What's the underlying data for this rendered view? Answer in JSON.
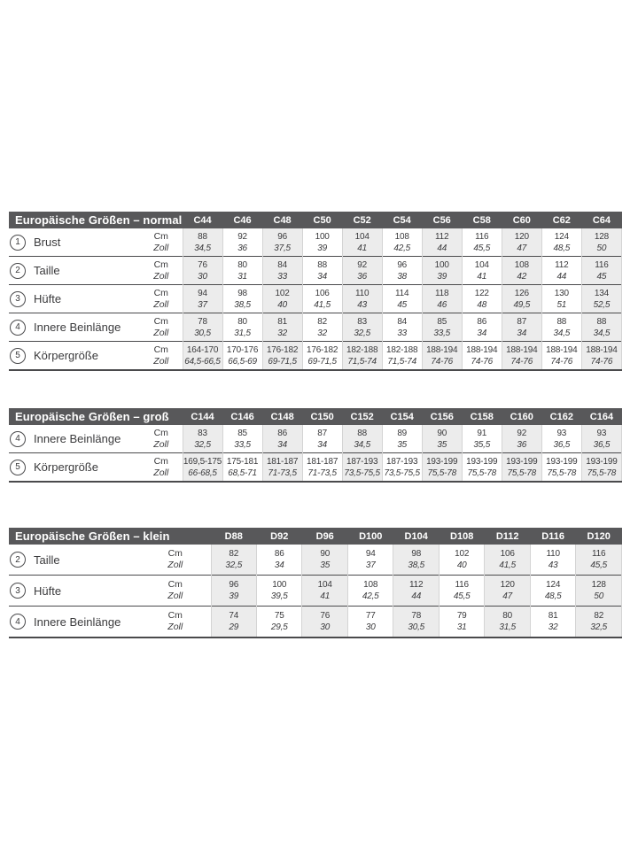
{
  "colors": {
    "header_bg": "#58585a",
    "stripe_bg": "#ececec",
    "rule": "#4a4a4c",
    "column_line": "#d4d4d4",
    "text": "#3a3a3c"
  },
  "units": {
    "cm": "Cm",
    "zoll": "Zoll"
  },
  "tables": [
    {
      "id": "normal",
      "title": "Europäische Größen – normal",
      "columns": [
        "C44",
        "C46",
        "C48",
        "C50",
        "C52",
        "C54",
        "C56",
        "C58",
        "C60",
        "C62",
        "C64"
      ],
      "rows": [
        {
          "num": "1",
          "label": "Brust",
          "cm": [
            "88",
            "92",
            "96",
            "100",
            "104",
            "108",
            "112",
            "116",
            "120",
            "124",
            "128"
          ],
          "zoll": [
            "34,5",
            "36",
            "37,5",
            "39",
            "41",
            "42,5",
            "44",
            "45,5",
            "47",
            "48,5",
            "50"
          ]
        },
        {
          "num": "2",
          "label": "Taille",
          "cm": [
            "76",
            "80",
            "84",
            "88",
            "92",
            "96",
            "100",
            "104",
            "108",
            "112",
            "116"
          ],
          "zoll": [
            "30",
            "31",
            "33",
            "34",
            "36",
            "38",
            "39",
            "41",
            "42",
            "44",
            "45"
          ]
        },
        {
          "num": "3",
          "label": "Hüfte",
          "cm": [
            "94",
            "98",
            "102",
            "106",
            "110",
            "114",
            "118",
            "122",
            "126",
            "130",
            "134"
          ],
          "zoll": [
            "37",
            "38,5",
            "40",
            "41,5",
            "43",
            "45",
            "46",
            "48",
            "49,5",
            "51",
            "52,5"
          ]
        },
        {
          "num": "4",
          "label": "Innere Beinlänge",
          "cm": [
            "78",
            "80",
            "81",
            "82",
            "83",
            "84",
            "85",
            "86",
            "87",
            "88",
            "88"
          ],
          "zoll": [
            "30,5",
            "31,5",
            "32",
            "32",
            "32,5",
            "33",
            "33,5",
            "34",
            "34",
            "34,5",
            "34,5"
          ]
        },
        {
          "num": "5",
          "label": "Körpergröße",
          "cm": [
            "164-170",
            "170-176",
            "176-182",
            "176-182",
            "182-188",
            "182-188",
            "188-194",
            "188-194",
            "188-194",
            "188-194",
            "188-194"
          ],
          "zoll": [
            "64,5-66,5",
            "66,5-69",
            "69-71,5",
            "69-71,5",
            "71,5-74",
            "71,5-74",
            "74-76",
            "74-76",
            "74-76",
            "74-76",
            "74-76"
          ]
        }
      ]
    },
    {
      "id": "gross",
      "title": "Europäische Größen – groß",
      "columns": [
        "C144",
        "C146",
        "C148",
        "C150",
        "C152",
        "C154",
        "C156",
        "C158",
        "C160",
        "C162",
        "C164"
      ],
      "rows": [
        {
          "num": "4",
          "label": "Innere Beinlänge",
          "cm": [
            "83",
            "85",
            "86",
            "87",
            "88",
            "89",
            "90",
            "91",
            "92",
            "93",
            "93"
          ],
          "zoll": [
            "32,5",
            "33,5",
            "34",
            "34",
            "34,5",
            "35",
            "35",
            "35,5",
            "36",
            "36,5",
            "36,5"
          ]
        },
        {
          "num": "5",
          "label": "Körpergröße",
          "cm": [
            "169,5-175",
            "175-181",
            "181-187",
            "181-187",
            "187-193",
            "187-193",
            "193-199",
            "193-199",
            "193-199",
            "193-199",
            "193-199"
          ],
          "zoll": [
            "66-68,5",
            "68,5-71",
            "71-73,5",
            "71-73,5",
            "73,5-75,5",
            "73,5-75,5",
            "75,5-78",
            "75,5-78",
            "75,5-78",
            "75,5-78",
            "75,5-78"
          ]
        }
      ]
    },
    {
      "id": "klein",
      "title": "Europäische Größen – klein",
      "columns": [
        "D88",
        "D92",
        "D96",
        "D100",
        "D104",
        "D108",
        "D112",
        "D116",
        "D120"
      ],
      "rows": [
        {
          "num": "2",
          "label": "Taille",
          "cm": [
            "82",
            "86",
            "90",
            "94",
            "98",
            "102",
            "106",
            "110",
            "116"
          ],
          "zoll": [
            "32,5",
            "34",
            "35",
            "37",
            "38,5",
            "40",
            "41,5",
            "43",
            "45,5"
          ]
        },
        {
          "num": "3",
          "label": "Hüfte",
          "cm": [
            "96",
            "100",
            "104",
            "108",
            "112",
            "116",
            "120",
            "124",
            "128"
          ],
          "zoll": [
            "39",
            "39,5",
            "41",
            "42,5",
            "44",
            "45,5",
            "47",
            "48,5",
            "50"
          ]
        },
        {
          "num": "4",
          "label": "Innere Beinlänge",
          "cm": [
            "74",
            "75",
            "76",
            "77",
            "78",
            "79",
            "80",
            "81",
            "82"
          ],
          "zoll": [
            "29",
            "29,5",
            "30",
            "30",
            "30,5",
            "31",
            "31,5",
            "32",
            "32,5"
          ]
        }
      ]
    }
  ]
}
